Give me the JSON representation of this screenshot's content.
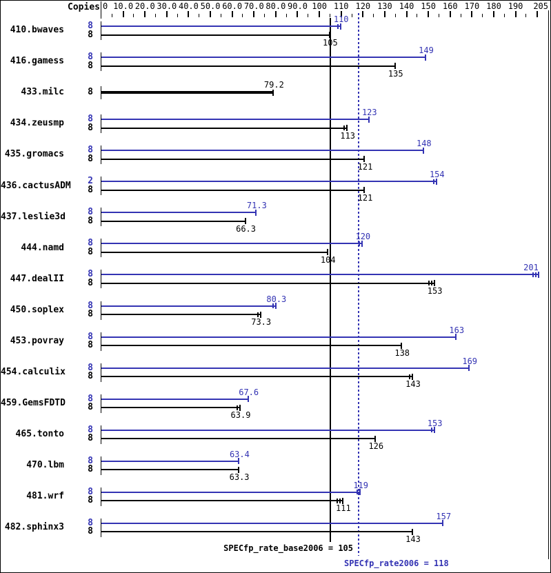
{
  "chart_data": {
    "type": "bar",
    "orientation": "horizontal",
    "title": "",
    "copies_header": "Copies",
    "legend_position": "none",
    "grid": false,
    "colors": {
      "peak": "#3333b3",
      "base": "#000000"
    },
    "axis": {
      "min": 0,
      "max": 205,
      "minor_step": 5,
      "major_step": 10,
      "ticks": [
        {
          "v": 0,
          "label": "0"
        },
        {
          "v": 10,
          "label": "10.0"
        },
        {
          "v": 20,
          "label": "20.0"
        },
        {
          "v": 30,
          "label": "30.0"
        },
        {
          "v": 40,
          "label": "40.0"
        },
        {
          "v": 50,
          "label": "50.0"
        },
        {
          "v": 60,
          "label": "60.0"
        },
        {
          "v": 70,
          "label": "70.0"
        },
        {
          "v": 80,
          "label": "80.0"
        },
        {
          "v": 90,
          "label": "90.0"
        },
        {
          "v": 100,
          "label": "100"
        },
        {
          "v": 110,
          "label": "110"
        },
        {
          "v": 120,
          "label": "120"
        },
        {
          "v": 130,
          "label": "130"
        },
        {
          "v": 140,
          "label": "140"
        },
        {
          "v": 150,
          "label": "150"
        },
        {
          "v": 160,
          "label": "160"
        },
        {
          "v": 170,
          "label": "170"
        },
        {
          "v": 180,
          "label": "180"
        },
        {
          "v": 190,
          "label": "190"
        },
        {
          "v": 205,
          "label": "205"
        }
      ]
    },
    "benchmarks": [
      {
        "name": "410.bwaves",
        "peak": {
          "copies": "8",
          "value": 110,
          "display": "110",
          "ticks": 2
        },
        "base": {
          "copies": "8",
          "value": 105,
          "display": "105",
          "ticks": 1
        }
      },
      {
        "name": "416.gamess",
        "peak": {
          "copies": "8",
          "value": 149,
          "display": "149",
          "ticks": 1
        },
        "base": {
          "copies": "8",
          "value": 135,
          "display": "135",
          "ticks": 1
        }
      },
      {
        "name": "433.milc",
        "single": {
          "copies": "8",
          "value": 79.2,
          "display": "79.2",
          "ticks": 1
        }
      },
      {
        "name": "434.zeusmp",
        "peak": {
          "copies": "8",
          "value": 123,
          "display": "123",
          "ticks": 1
        },
        "base": {
          "copies": "8",
          "value": 113,
          "display": "113",
          "ticks": 2
        }
      },
      {
        "name": "435.gromacs",
        "peak": {
          "copies": "8",
          "value": 148,
          "display": "148",
          "ticks": 1
        },
        "base": {
          "copies": "8",
          "value": 121,
          "display": "121",
          "ticks": 1
        }
      },
      {
        "name": "436.cactusADM",
        "peak": {
          "copies": "2",
          "value": 154,
          "display": "154",
          "ticks": 2
        },
        "base": {
          "copies": "8",
          "value": 121,
          "display": "121",
          "ticks": 1
        }
      },
      {
        "name": "437.leslie3d",
        "peak": {
          "copies": "8",
          "value": 71.3,
          "display": "71.3",
          "ticks": 1
        },
        "base": {
          "copies": "8",
          "value": 66.3,
          "display": "66.3",
          "ticks": 1
        }
      },
      {
        "name": "444.namd",
        "peak": {
          "copies": "8",
          "value": 120,
          "display": "120",
          "ticks": 2
        },
        "base": {
          "copies": "8",
          "value": 104,
          "display": "104",
          "ticks": 1
        }
      },
      {
        "name": "447.dealII",
        "peak": {
          "copies": "8",
          "value": 201,
          "display": "201",
          "ticks": 3
        },
        "base": {
          "copies": "8",
          "value": 153,
          "display": "153",
          "ticks": 3
        }
      },
      {
        "name": "450.soplex",
        "peak": {
          "copies": "8",
          "value": 80.3,
          "display": "80.3",
          "ticks": 2
        },
        "base": {
          "copies": "8",
          "value": 73.3,
          "display": "73.3",
          "ticks": 2
        }
      },
      {
        "name": "453.povray",
        "peak": {
          "copies": "8",
          "value": 163,
          "display": "163",
          "ticks": 1
        },
        "base": {
          "copies": "8",
          "value": 138,
          "display": "138",
          "ticks": 1
        }
      },
      {
        "name": "454.calculix",
        "peak": {
          "copies": "8",
          "value": 169,
          "display": "169",
          "ticks": 1
        },
        "base": {
          "copies": "8",
          "value": 143,
          "display": "143",
          "ticks": 2
        }
      },
      {
        "name": "459.GemsFDTD",
        "peak": {
          "copies": "8",
          "value": 67.6,
          "display": "67.6",
          "ticks": 1
        },
        "base": {
          "copies": "8",
          "value": 63.9,
          "display": "63.9",
          "ticks": 2
        }
      },
      {
        "name": "465.tonto",
        "peak": {
          "copies": "8",
          "value": 153,
          "display": "153",
          "ticks": 2
        },
        "base": {
          "copies": "8",
          "value": 126,
          "display": "126",
          "ticks": 1
        }
      },
      {
        "name": "470.lbm",
        "peak": {
          "copies": "8",
          "value": 63.4,
          "display": "63.4",
          "ticks": 1
        },
        "base": {
          "copies": "8",
          "value": 63.3,
          "display": "63.3",
          "ticks": 1
        }
      },
      {
        "name": "481.wrf",
        "peak": {
          "copies": "8",
          "value": 119,
          "display": "119",
          "ticks": 2
        },
        "base": {
          "copies": "8",
          "value": 111,
          "display": "111",
          "ticks": 3
        }
      },
      {
        "name": "482.sphinx3",
        "peak": {
          "copies": "8",
          "value": 157,
          "display": "157",
          "ticks": 1
        },
        "base": {
          "copies": "8",
          "value": 143,
          "display": "143",
          "ticks": 1
        }
      }
    ],
    "reference_lines": [
      {
        "id": "base",
        "label": "SPECfp_rate_base2006 = 105",
        "value": 105,
        "style": "solid",
        "color": "#000000"
      },
      {
        "id": "peak",
        "label": "SPECfp_rate2006 = 118",
        "value": 118,
        "style": "dotted",
        "color": "#3333b3"
      }
    ]
  }
}
